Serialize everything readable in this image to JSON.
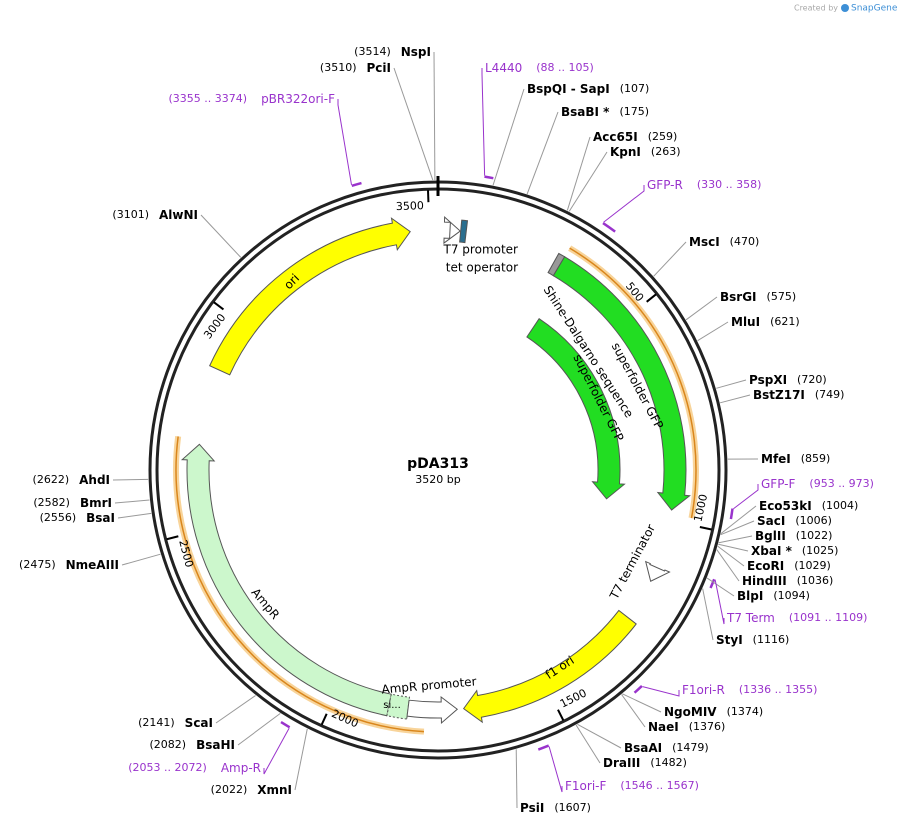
{
  "credit": "Created by",
  "brand": "SnapGene",
  "map": {
    "name": "pDA313",
    "length": "3520 bp"
  },
  "ruler_ticks": [
    500,
    1000,
    1500,
    2000,
    2500,
    3000,
    3500
  ],
  "features": {
    "ori": "ori",
    "sfgfp_outer": "superfolder GFP",
    "shine_dalgarno": "Shine-Dalgarno sequence",
    "sfgfp_inner": "superfolder GFP",
    "t7_promoter": "T7 promoter",
    "tet_operator": "tet operator",
    "t7_terminator": "T7 terminator",
    "f1_ori": "f1 ori",
    "ampr_promoter": "AmpR promoter",
    "ampr": "AmpR",
    "signal": "si..."
  },
  "sites": [
    {
      "name": "BspQI - SapI",
      "position": {
        "value": 107,
        "label": "(107)"
      }
    },
    {
      "name": "BsaBI *",
      "position": {
        "value": 175,
        "label": "(175)"
      }
    },
    {
      "name": "Acc65I",
      "position": {
        "value": 259,
        "label": "(259)"
      }
    },
    {
      "name": "KpnI",
      "position": {
        "value": 263,
        "label": "(263)"
      }
    },
    {
      "name": "MscI",
      "position": {
        "value": 470,
        "label": "(470)"
      }
    },
    {
      "name": "BsrGI",
      "position": {
        "value": 575,
        "label": "(575)"
      }
    },
    {
      "name": "MluI",
      "position": {
        "value": 621,
        "label": "(621)"
      }
    },
    {
      "name": "PspXI",
      "position": {
        "value": 720,
        "label": "(720)"
      }
    },
    {
      "name": "BstZ17I",
      "position": {
        "value": 749,
        "label": "(749)"
      }
    },
    {
      "name": "MfeI",
      "position": {
        "value": 859,
        "label": "(859)"
      }
    },
    {
      "name": "Eco53kI",
      "position": {
        "value": 1004,
        "label": "(1004)"
      }
    },
    {
      "name": "SacI",
      "position": {
        "value": 1006,
        "label": "(1006)"
      }
    },
    {
      "name": "BglII",
      "position": {
        "value": 1022,
        "label": "(1022)"
      }
    },
    {
      "name": "XbaI *",
      "position": {
        "value": 1025,
        "label": "(1025)"
      }
    },
    {
      "name": "EcoRI",
      "position": {
        "value": 1029,
        "label": "(1029)"
      }
    },
    {
      "name": "HindIII",
      "position": {
        "value": 1036,
        "label": "(1036)"
      }
    },
    {
      "name": "BlpI",
      "position": {
        "value": 1094,
        "label": "(1094)"
      }
    },
    {
      "name": "StyI",
      "position": {
        "value": 1116,
        "label": "(1116)"
      }
    },
    {
      "name": "NgoMIV",
      "position": {
        "value": 1374,
        "label": "(1374)"
      }
    },
    {
      "name": "NaeI",
      "position": {
        "value": 1376,
        "label": "(1376)"
      }
    },
    {
      "name": "BsaAI",
      "position": {
        "value": 1479,
        "label": "(1479)"
      }
    },
    {
      "name": "DraIII",
      "position": {
        "value": 1482,
        "label": "(1482)"
      }
    },
    {
      "name": "PsiI",
      "position": {
        "value": 1607,
        "label": "(1607)"
      }
    },
    {
      "name": "XmnI",
      "position": {
        "value": 2022,
        "label": "(2022)"
      }
    },
    {
      "name": "BsaHI",
      "position": {
        "value": 2082,
        "label": "(2082)"
      }
    },
    {
      "name": "ScaI",
      "position": {
        "value": 2141,
        "label": "(2141)"
      }
    },
    {
      "name": "NmeAIII",
      "position": {
        "value": 2475,
        "label": "(2475)"
      }
    },
    {
      "name": "BsaI",
      "position": {
        "value": 2556,
        "label": "(2556)"
      }
    },
    {
      "name": "BmrI",
      "position": {
        "value": 2582,
        "label": "(2582)"
      }
    },
    {
      "name": "AhdI",
      "position": {
        "value": 2622,
        "label": "(2622)"
      }
    },
    {
      "name": "AlwNI",
      "position": {
        "value": 3101,
        "label": "(3101)"
      }
    },
    {
      "name": "PciI",
      "position": {
        "value": 3510,
        "label": "(3510)"
      }
    },
    {
      "name": "NspI",
      "position": {
        "value": 3514,
        "label": "(3514)"
      }
    }
  ],
  "primers": [
    {
      "name": "L4440",
      "range": "(88 .. 105)"
    },
    {
      "name": "GFP-R",
      "range": "(330 .. 358)"
    },
    {
      "name": "GFP-F",
      "range": "(953 .. 973)"
    },
    {
      "name": "T7 Term",
      "range": "(1091 .. 1109)"
    },
    {
      "name": "F1ori-R",
      "range": "(1336 .. 1355)"
    },
    {
      "name": "F1ori-F",
      "range": "(1546 .. 1567)"
    },
    {
      "name": "Amp-R",
      "range": "(2053 .. 2072)"
    },
    {
      "name": "pBR322ori-F",
      "range": "(3355 .. 3374)"
    }
  ]
}
